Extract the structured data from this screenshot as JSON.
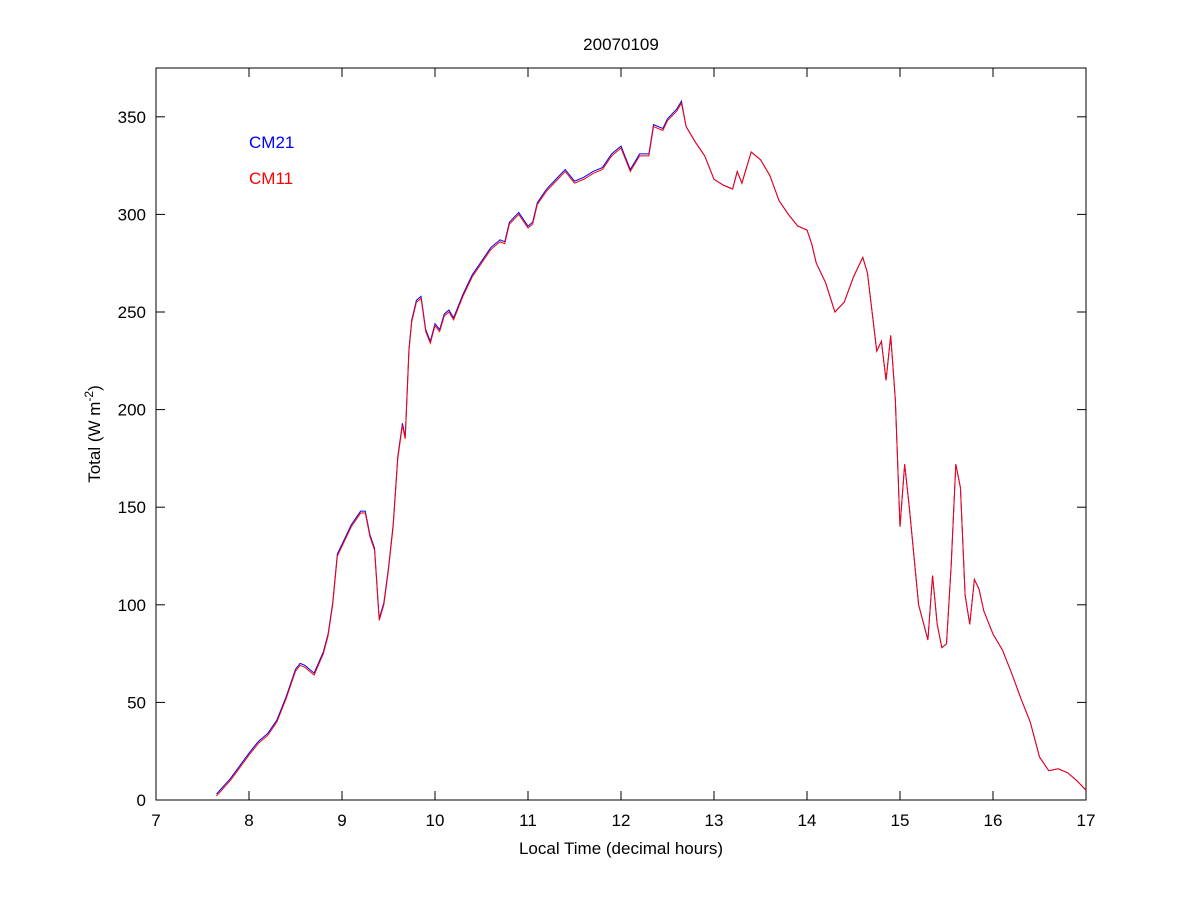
{
  "chart_data": {
    "type": "line",
    "title": "20070109",
    "xlabel": "Local Time (decimal hours)",
    "ylabel": [
      "Total (W m",
      "-2",
      ")"
    ],
    "xlim": [
      7,
      17
    ],
    "xticks": [
      7,
      8,
      9,
      10,
      11,
      12,
      13,
      14,
      15,
      16,
      17
    ],
    "ylim": [
      0,
      375
    ],
    "yticks": [
      0,
      50,
      100,
      150,
      200,
      250,
      300,
      350
    ],
    "legend": "upper-left",
    "x": [
      7.65,
      7.8,
      8.0,
      8.1,
      8.2,
      8.3,
      8.4,
      8.5,
      8.55,
      8.6,
      8.7,
      8.8,
      8.85,
      8.9,
      8.95,
      9.0,
      9.1,
      9.2,
      9.25,
      9.3,
      9.35,
      9.4,
      9.45,
      9.5,
      9.55,
      9.6,
      9.65,
      9.68,
      9.72,
      9.75,
      9.8,
      9.85,
      9.9,
      9.95,
      10.0,
      10.05,
      10.1,
      10.15,
      10.2,
      10.3,
      10.4,
      10.5,
      10.6,
      10.7,
      10.75,
      10.8,
      10.9,
      11.0,
      11.05,
      11.1,
      11.2,
      11.3,
      11.4,
      11.5,
      11.6,
      11.7,
      11.8,
      11.9,
      12.0,
      12.1,
      12.2,
      12.3,
      12.35,
      12.45,
      12.5,
      12.6,
      12.65,
      12.7,
      12.8,
      12.9,
      13.0,
      13.1,
      13.2,
      13.25,
      13.3,
      13.4,
      13.5,
      13.6,
      13.7,
      13.8,
      13.9,
      14.0,
      14.05,
      14.1,
      14.2,
      14.3,
      14.4,
      14.5,
      14.6,
      14.65,
      14.7,
      14.75,
      14.8,
      14.85,
      14.9,
      14.95,
      15.0,
      15.05,
      15.1,
      15.2,
      15.3,
      15.35,
      15.4,
      15.45,
      15.5,
      15.55,
      15.6,
      15.65,
      15.7,
      15.75,
      15.8,
      15.85,
      15.9,
      16.0,
      16.1,
      16.2,
      16.3,
      16.4,
      16.5,
      16.6,
      16.7,
      16.8,
      16.9,
      17.0
    ],
    "series": [
      {
        "name": "CM21",
        "color": "#0000ff",
        "values": [
          3,
          11,
          24,
          30,
          34,
          41,
          53,
          67,
          70,
          69,
          65,
          76,
          85,
          101,
          126,
          131,
          141,
          148,
          148,
          136,
          129,
          93,
          101,
          119,
          141,
          176,
          193,
          186,
          231,
          246,
          256,
          258,
          241,
          235,
          244,
          241,
          249,
          251,
          247,
          259,
          269,
          276,
          283,
          287,
          286,
          296,
          301,
          294,
          296,
          306,
          313,
          318,
          323,
          317,
          319,
          322,
          324,
          331,
          335,
          323,
          331,
          331,
          346,
          344,
          349,
          354,
          358,
          345,
          337,
          330,
          318,
          315,
          313,
          322,
          316,
          332,
          328,
          320,
          307,
          300,
          294,
          292,
          285,
          275,
          265,
          250,
          255,
          268,
          278,
          270,
          250,
          230,
          235,
          215,
          238,
          205,
          140,
          172,
          150,
          100,
          82,
          115,
          90,
          78,
          80,
          120,
          172,
          160,
          105,
          90,
          113,
          108,
          97,
          85,
          77,
          65,
          52,
          40,
          22,
          15,
          16,
          14,
          10,
          5
        ]
      },
      {
        "name": "CM11",
        "color": "#ff0000",
        "values": [
          2,
          10,
          23,
          29,
          33,
          40,
          52,
          66,
          69,
          68,
          64,
          75,
          84,
          100,
          125,
          130,
          140,
          147,
          147,
          135,
          128,
          92,
          100,
          118,
          140,
          175,
          192,
          185,
          230,
          245,
          255,
          257,
          240,
          234,
          243,
          240,
          248,
          250,
          246,
          258,
          268,
          275,
          282,
          286,
          285,
          295,
          300,
          293,
          295,
          305,
          312,
          317,
          322,
          316,
          318,
          321,
          323,
          330,
          334,
          322,
          330,
          330,
          345,
          343,
          348,
          353,
          357,
          345,
          337,
          330,
          318,
          315,
          313,
          322,
          316,
          332,
          328,
          320,
          307,
          300,
          294,
          292,
          285,
          275,
          265,
          250,
          255,
          268,
          278,
          270,
          250,
          230,
          235,
          215,
          238,
          205,
          140,
          172,
          150,
          100,
          82,
          115,
          90,
          78,
          80,
          120,
          172,
          160,
          105,
          90,
          113,
          108,
          97,
          85,
          77,
          65,
          52,
          40,
          22,
          15,
          16,
          14,
          10,
          5
        ]
      }
    ]
  }
}
